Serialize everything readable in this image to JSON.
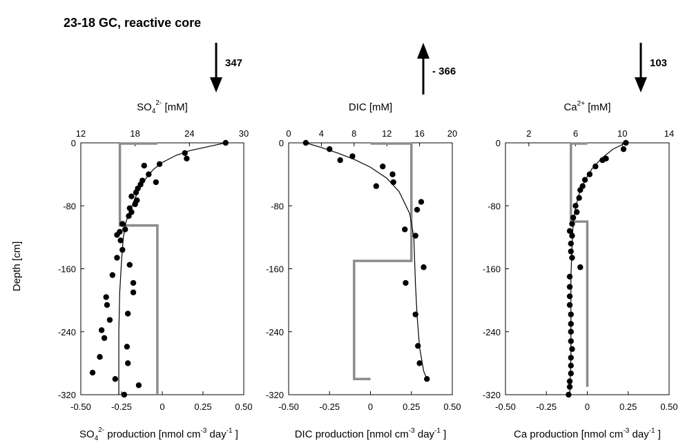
{
  "title": "23-18 GC, reactive core",
  "y_axis_label": "Depth [cm]",
  "chart_data": [
    {
      "type": "scatter",
      "name": "SO4",
      "top_label": {
        "base": "SO",
        "sub": "4",
        "sup": "2-",
        "unit": " [mM]"
      },
      "bottom_label": {
        "base": "SO",
        "sub": "4",
        "sup": "2-",
        "rest": "  production [nmol cm",
        "sup2": "-3",
        "mid": " day",
        "sup3": "-1",
        "end": " ]"
      },
      "flux_value": "347",
      "flux_direction": "down",
      "conc_axis": {
        "range": [
          12,
          30
        ],
        "ticks": [
          12,
          18,
          24,
          30
        ]
      },
      "rate_axis": {
        "range": [
          -0.5,
          0.5
        ],
        "ticks": [
          "-0.50",
          "-0.25",
          "0",
          "0.25",
          "0.50"
        ]
      },
      "depth_axis": {
        "range": [
          0,
          -320
        ],
        "ticks": [
          0,
          -80,
          -160,
          -240,
          -320
        ]
      },
      "points": [
        [
          28.0,
          0
        ],
        [
          23.5,
          -13
        ],
        [
          23.7,
          -20
        ],
        [
          20.7,
          -27
        ],
        [
          20.3,
          -50
        ],
        [
          19.0,
          -29
        ],
        [
          19.5,
          -40
        ],
        [
          18.6,
          -53
        ],
        [
          18.8,
          -48
        ],
        [
          18.3,
          -58
        ],
        [
          18.1,
          -63
        ],
        [
          17.6,
          -68
        ],
        [
          18.2,
          -73
        ],
        [
          18.0,
          -78
        ],
        [
          17.4,
          -83
        ],
        [
          17.6,
          -88
        ],
        [
          17.3,
          -93
        ],
        [
          16.6,
          -103
        ],
        [
          16.9,
          -110
        ],
        [
          16.3,
          -113
        ],
        [
          16.0,
          -117
        ],
        [
          16.4,
          -124
        ],
        [
          16.6,
          -136
        ],
        [
          16.0,
          -146
        ],
        [
          17.4,
          -155
        ],
        [
          15.5,
          -168
        ],
        [
          17.8,
          -178
        ],
        [
          17.8,
          -190
        ],
        [
          14.8,
          -196
        ],
        [
          14.9,
          -206
        ],
        [
          17.2,
          -217
        ],
        [
          15.2,
          -225
        ],
        [
          14.3,
          -238
        ],
        [
          14.6,
          -248
        ],
        [
          17.1,
          -259
        ],
        [
          14.1,
          -272
        ],
        [
          17.2,
          -280
        ],
        [
          15.8,
          -300
        ],
        [
          13.3,
          -292
        ],
        [
          18.4,
          -308
        ],
        [
          16.8,
          -320
        ]
      ],
      "fit_line": [
        [
          28.0,
          0
        ],
        [
          26,
          -5
        ],
        [
          24,
          -10
        ],
        [
          22.5,
          -16
        ],
        [
          21,
          -25
        ],
        [
          20,
          -34
        ],
        [
          19.2,
          -45
        ],
        [
          18.6,
          -56
        ],
        [
          18.0,
          -70
        ],
        [
          17.5,
          -85
        ],
        [
          17.0,
          -100
        ],
        [
          16.7,
          -120
        ],
        [
          16.5,
          -150
        ],
        [
          16.3,
          -190
        ],
        [
          16.2,
          -240
        ],
        [
          16.2,
          -290
        ],
        [
          16.2,
          -320
        ]
      ],
      "rate_steps": [
        [
          -0.26,
          0
        ],
        [
          -0.26,
          -105
        ],
        [
          -0.03,
          -105
        ],
        [
          -0.03,
          -320
        ]
      ],
      "rate_top_extend": [
        -0.26,
        -0.03
      ]
    },
    {
      "type": "scatter",
      "name": "DIC",
      "top_label": {
        "base": "DIC",
        "sub": "",
        "sup": "",
        "unit": " [mM]"
      },
      "bottom_label": {
        "base": "DIC",
        "sub": "",
        "sup": "",
        "rest": " production [nmol cm",
        "sup2": "-3",
        "mid": " day",
        "sup3": "-1",
        "end": " ]"
      },
      "flux_value": "- 366",
      "flux_direction": "up",
      "conc_axis": {
        "range": [
          0,
          20
        ],
        "ticks": [
          0,
          4,
          8,
          12,
          16,
          20
        ]
      },
      "rate_axis": {
        "range": [
          -0.5,
          0.5
        ],
        "ticks": [
          "-0.50",
          "-0.25",
          "0",
          "0.25",
          "0.50"
        ]
      },
      "depth_axis": {
        "range": [
          0,
          -320
        ],
        "ticks": [
          0,
          -80,
          -160,
          -240,
          -320
        ]
      },
      "points": [
        [
          2.1,
          0
        ],
        [
          5.0,
          -8
        ],
        [
          7.8,
          -17
        ],
        [
          6.3,
          -22
        ],
        [
          11.5,
          -30
        ],
        [
          12.7,
          -40
        ],
        [
          10.7,
          -55
        ],
        [
          12.8,
          -50
        ],
        [
          16.2,
          -75
        ],
        [
          15.7,
          -85
        ],
        [
          14.2,
          -110
        ],
        [
          15.5,
          -118
        ],
        [
          16.5,
          -158
        ],
        [
          14.3,
          -178
        ],
        [
          15.5,
          -218
        ],
        [
          15.8,
          -258
        ],
        [
          16.0,
          -280
        ],
        [
          16.9,
          -300
        ]
      ],
      "fit_line": [
        [
          2.1,
          0
        ],
        [
          4,
          -6
        ],
        [
          6,
          -13
        ],
        [
          8,
          -21
        ],
        [
          10,
          -31
        ],
        [
          12,
          -45
        ],
        [
          13.5,
          -62
        ],
        [
          14.8,
          -90
        ],
        [
          15.3,
          -120
        ],
        [
          15.4,
          -150
        ],
        [
          15.5,
          -180
        ],
        [
          15.7,
          -220
        ],
        [
          16.0,
          -260
        ],
        [
          16.5,
          -290
        ],
        [
          16.9,
          -300
        ]
      ],
      "rate_steps": [
        [
          0.25,
          0
        ],
        [
          0.25,
          -150
        ],
        [
          -0.1,
          -150
        ],
        [
          -0.1,
          -300
        ],
        [
          0.0,
          -300
        ]
      ],
      "rate_top_extend": [
        0.0,
        0.25
      ]
    },
    {
      "type": "scatter",
      "name": "Ca",
      "top_label": {
        "base": "Ca",
        "sub": "",
        "sup": "2+",
        "unit": " [mM]"
      },
      "bottom_label": {
        "base": "Ca production [nmol cm",
        "sub": "",
        "sup": "",
        "rest": "",
        "sup2": "-3",
        "mid": " day",
        "sup3": "-1",
        "end": " ]"
      },
      "flux_value": "103",
      "flux_direction": "down",
      "conc_axis": {
        "range": [
          0,
          14
        ],
        "ticks": [
          2,
          6,
          10,
          14
        ]
      },
      "rate_axis": {
        "range": [
          -0.5,
          0.5
        ],
        "ticks": [
          "-0.50",
          "-0.25",
          "0",
          "0.25",
          "0.50"
        ]
      },
      "depth_axis": {
        "range": [
          0,
          -320
        ],
        "ticks": [
          0,
          -80,
          -160,
          -240,
          -320
        ]
      },
      "points": [
        [
          10.3,
          0
        ],
        [
          10.1,
          -8
        ],
        [
          8.3,
          -22
        ],
        [
          8.6,
          -20
        ],
        [
          7.7,
          -30
        ],
        [
          7.2,
          -40
        ],
        [
          6.8,
          -47
        ],
        [
          6.6,
          -55
        ],
        [
          6.4,
          -60
        ],
        [
          6.3,
          -70
        ],
        [
          6.0,
          -80
        ],
        [
          6.1,
          -88
        ],
        [
          5.8,
          -95
        ],
        [
          5.7,
          -103
        ],
        [
          5.5,
          -112
        ],
        [
          5.7,
          -118
        ],
        [
          5.6,
          -128
        ],
        [
          5.6,
          -138
        ],
        [
          5.7,
          -146
        ],
        [
          6.4,
          -158
        ],
        [
          5.5,
          -170
        ],
        [
          5.5,
          -183
        ],
        [
          5.5,
          -195
        ],
        [
          5.5,
          -206
        ],
        [
          5.6,
          -218
        ],
        [
          5.6,
          -230
        ],
        [
          5.6,
          -240
        ],
        [
          5.6,
          -252
        ],
        [
          5.7,
          -262
        ],
        [
          5.6,
          -273
        ],
        [
          5.6,
          -283
        ],
        [
          5.6,
          -293
        ],
        [
          5.5,
          -303
        ],
        [
          5.5,
          -310
        ],
        [
          5.4,
          -320
        ]
      ],
      "fit_line": [
        [
          10.3,
          0
        ],
        [
          9.2,
          -8
        ],
        [
          8.2,
          -20
        ],
        [
          7.4,
          -33
        ],
        [
          6.8,
          -48
        ],
        [
          6.3,
          -65
        ],
        [
          6.0,
          -82
        ],
        [
          5.8,
          -100
        ],
        [
          5.7,
          -130
        ],
        [
          5.6,
          -170
        ],
        [
          5.6,
          -220
        ],
        [
          5.6,
          -270
        ],
        [
          5.5,
          -320
        ]
      ],
      "rate_steps": [
        [
          -0.1,
          0
        ],
        [
          -0.1,
          -100
        ],
        [
          0.0,
          -100
        ],
        [
          0.0,
          -310
        ]
      ],
      "rate_top_extend": [
        -0.1,
        0.0
      ]
    }
  ]
}
